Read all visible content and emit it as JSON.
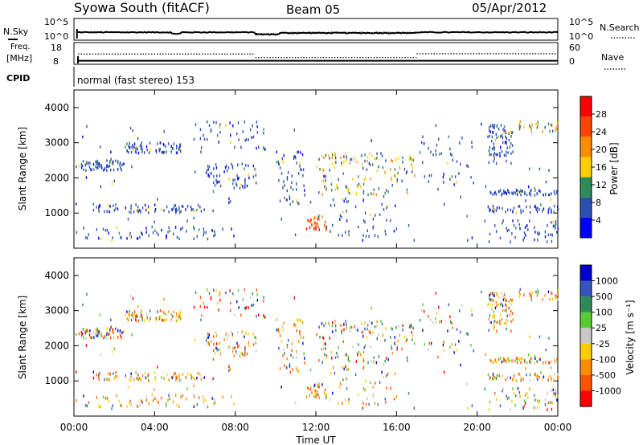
{
  "header": {
    "station": "Syowa South (fitACF)",
    "beam": "Beam 05",
    "date": "05/Apr/2012"
  },
  "noise_panel": {
    "left_label": "N.Sky",
    "right_label": "N.Search",
    "ticks": [
      "10^5",
      "10^0"
    ],
    "sky_level_log10": 1.0,
    "search_level_log10": 1.6
  },
  "freq_panel": {
    "left_label_line1": "Freq.",
    "left_label_line2": "[MHz]",
    "left_ticks": [
      "18",
      "8"
    ],
    "right_label": "Nave",
    "right_ticks": [
      "60",
      "0"
    ],
    "freq_mhz": 10.0,
    "nave_segments": [
      {
        "from": 0.2,
        "to": 9.0,
        "value": 32
      },
      {
        "from": 9.0,
        "to": 17.0,
        "value": 20
      },
      {
        "from": 17.0,
        "to": 24.0,
        "value": 33
      }
    ]
  },
  "cpid_label": "CPID",
  "cpid_text": "normal (fast stereo) 153",
  "x_axis": {
    "title": "Time UT",
    "ticks": [
      "00:00",
      "04:00",
      "08:00",
      "12:00",
      "16:00",
      "20:00",
      "00:00"
    ],
    "range_hours": [
      0,
      24
    ]
  },
  "power_panel": {
    "ylabel": "Slant Range [km]",
    "yticks": [
      "4000",
      "3000",
      "2000",
      "1000"
    ],
    "colorbar_title": "Power [dB]",
    "colorbar_ticks": [
      "28",
      "24",
      "20",
      "16",
      "12",
      "8",
      "4"
    ],
    "colors": [
      "#0000ff",
      "#2b4fb0",
      "#2e8b57",
      "#ffcc00",
      "#ff8c00",
      "#ff4500",
      "#ff0000"
    ]
  },
  "velocity_panel": {
    "ylabel": "Slant Range [km]",
    "yticks": [
      "4000",
      "3000",
      "2000",
      "1000"
    ],
    "colorbar_title": "Velocity  [m s⁻¹]",
    "colorbar_ticks": [
      "1000",
      "500",
      "100",
      "25",
      "-25",
      "-100",
      "-500",
      "-1000"
    ],
    "colors": [
      "#0000cc",
      "#3355bb",
      "#2e8b57",
      "#55cc33",
      "#c8c8c8",
      "#ffcc00",
      "#ff8c00",
      "#ff5500",
      "#ff0000"
    ]
  },
  "chart_data": {
    "type": "scatter",
    "title": "Syowa South (fitACF)",
    "xlabel": "Time UT",
    "ylabel": "Slant Range [km]",
    "xlim": [
      0,
      24
    ],
    "ylim": [
      0,
      4500
    ],
    "scatter_clusters": [
      {
        "t0": 0.3,
        "t1": 2.5,
        "r0": 2200,
        "r1": 2500,
        "n": 60,
        "p": "low",
        "v": "mixed"
      },
      {
        "t0": 2.5,
        "t1": 5.5,
        "r0": 2700,
        "r1": 3000,
        "n": 70,
        "p": "low",
        "v": "neg"
      },
      {
        "t0": 1.0,
        "t1": 6.5,
        "r0": 1000,
        "r1": 1250,
        "n": 70,
        "p": "low",
        "v": "neg"
      },
      {
        "t0": 0.5,
        "t1": 8.0,
        "r0": 250,
        "r1": 600,
        "n": 60,
        "p": "low",
        "v": "neg"
      },
      {
        "t0": 6.5,
        "t1": 9.0,
        "r0": 1700,
        "r1": 2400,
        "n": 60,
        "p": "low",
        "v": "neg"
      },
      {
        "t0": 6.0,
        "t1": 9.5,
        "r0": 2800,
        "r1": 3600,
        "n": 40,
        "p": "low",
        "v": "mixed"
      },
      {
        "t0": 10.0,
        "t1": 11.5,
        "r0": 1200,
        "r1": 2800,
        "n": 50,
        "p": "low",
        "v": "neg"
      },
      {
        "t0": 11.5,
        "t1": 12.5,
        "r0": 500,
        "r1": 900,
        "n": 30,
        "p": "high",
        "v": "neg"
      },
      {
        "t0": 12.0,
        "t1": 17.0,
        "r0": 1500,
        "r1": 2700,
        "n": 130,
        "p": "mid",
        "v": "mixed"
      },
      {
        "t0": 12.5,
        "t1": 16.0,
        "r0": 300,
        "r1": 1400,
        "n": 40,
        "p": "low",
        "v": "neg"
      },
      {
        "t0": 17.0,
        "t1": 20.0,
        "r0": 1800,
        "r1": 3200,
        "n": 40,
        "p": "low",
        "v": "mixed"
      },
      {
        "t0": 20.5,
        "t1": 21.8,
        "r0": 2400,
        "r1": 3500,
        "n": 80,
        "p": "low",
        "v": "neg"
      },
      {
        "t0": 20.5,
        "t1": 24.0,
        "r0": 1500,
        "r1": 1650,
        "n": 60,
        "p": "low",
        "v": "neg"
      },
      {
        "t0": 20.5,
        "t1": 24.0,
        "r0": 1000,
        "r1": 1200,
        "n": 50,
        "p": "low",
        "v": "neg"
      },
      {
        "t0": 20.5,
        "t1": 24.0,
        "r0": 150,
        "r1": 800,
        "n": 50,
        "p": "low",
        "v": "mixed"
      },
      {
        "t0": 22.0,
        "t1": 24.0,
        "r0": 3300,
        "r1": 3600,
        "n": 30,
        "p": "mid",
        "v": "neg"
      },
      {
        "t0": 0.0,
        "t1": 24.0,
        "r0": 200,
        "r1": 3600,
        "n": 120,
        "p": "low",
        "v": "mixed"
      }
    ]
  }
}
